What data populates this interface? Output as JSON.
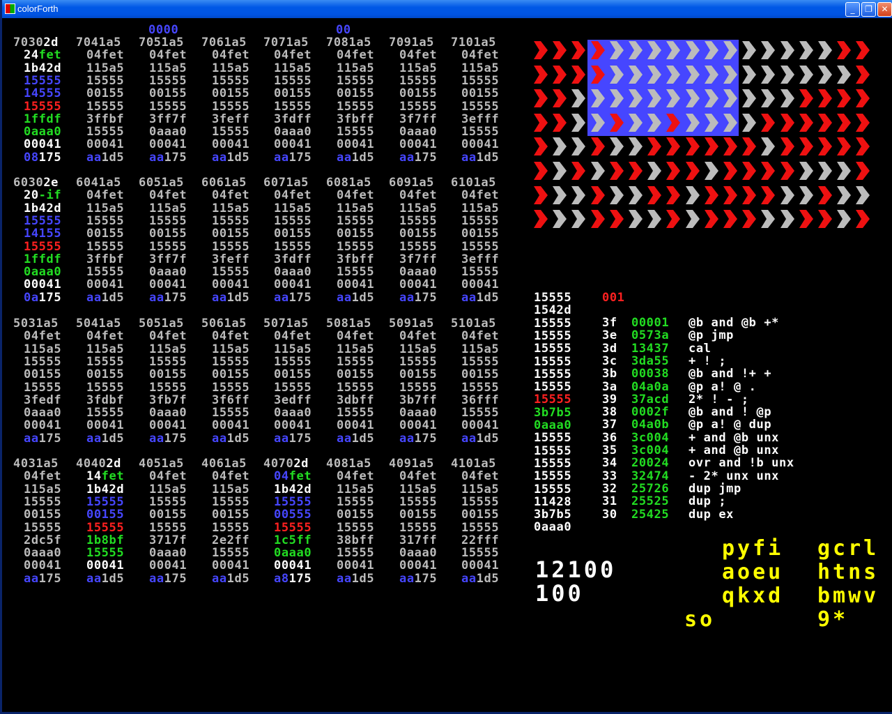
{
  "window": {
    "title": "colorForth"
  },
  "colors": {
    "white": "#ffffff",
    "gray": "#bcbcbc",
    "blue": "#4646ff",
    "red": "#ff2020",
    "green": "#22dd22",
    "yellow": "#ffff00",
    "flag_red": "#ee1111",
    "flag_gray": "#bcbcbc",
    "flag_blue": "#4646ff"
  },
  "top_markers": [
    "0000",
    "00"
  ],
  "blocks": [
    {
      "headers": [
        [
          "7030",
          [
            "2d",
            "w"
          ]
        ],
        "7041a5",
        "7051a5",
        "7061a5",
        "7071a5",
        "7081a5",
        "7091a5",
        "7101a5"
      ],
      "first_col": [
        [
          [
            "24",
            "w"
          ],
          [
            "fet",
            "gr"
          ]
        ],
        [
          "1b42d",
          "w"
        ],
        [
          "15555",
          "b"
        ],
        [
          "14555",
          "b"
        ],
        [
          "15555",
          "r"
        ],
        [
          "1ffdf",
          "gr"
        ],
        [
          "0aaa0",
          "gr"
        ],
        [
          "00041",
          "w"
        ],
        [
          [
            "08",
            "b"
          ],
          [
            "175",
            "w"
          ]
        ]
      ],
      "rows": [
        [
          "04fet"
        ],
        [
          "115a5"
        ],
        [
          "15555"
        ],
        [
          "00155"
        ],
        [
          "15555"
        ],
        [
          "3ffbf",
          "3ff7f",
          "3feff",
          "3fdff",
          "3fbff",
          "3f7ff",
          "3efff"
        ],
        [
          "15555",
          "0aaa0",
          "15555",
          "0aaa0",
          "15555",
          "0aaa0",
          "15555"
        ],
        [
          "00041"
        ],
        [
          "aa1d5",
          "aa175",
          "aa1d5",
          "aa175",
          "aa1d5",
          "aa175",
          "aa1d5"
        ]
      ]
    },
    {
      "headers": [
        [
          "6030",
          [
            "2e",
            "w"
          ]
        ],
        "6041a5",
        "6051a5",
        "6061a5",
        "6071a5",
        "6081a5",
        "6091a5",
        "6101a5"
      ],
      "first_col": [
        [
          [
            "20",
            "w"
          ],
          [
            "-if",
            "gr"
          ]
        ],
        [
          "1b42d",
          "w"
        ],
        [
          "15555",
          "b"
        ],
        [
          "14155",
          "b"
        ],
        [
          "15555",
          "r"
        ],
        [
          "1ffdf",
          "gr"
        ],
        [
          "0aaa0",
          "gr"
        ],
        [
          "00041",
          "w"
        ],
        [
          [
            "0a",
            "b"
          ],
          [
            "175",
            "w"
          ]
        ]
      ],
      "rows": [
        [
          "04fet"
        ],
        [
          "115a5"
        ],
        [
          "15555"
        ],
        [
          "00155"
        ],
        [
          "15555"
        ],
        [
          "3ffbf",
          "3ff7f",
          "3feff",
          "3fdff",
          "3fbff",
          "3f7ff",
          "3efff"
        ],
        [
          "15555",
          "0aaa0",
          "15555",
          "0aaa0",
          "15555",
          "0aaa0",
          "15555"
        ],
        [
          "00041"
        ],
        [
          "aa1d5",
          "aa175",
          "aa1d5",
          "aa175",
          "aa1d5",
          "aa175",
          "aa1d5"
        ]
      ]
    },
    {
      "headers": [
        "5031a5",
        "5041a5",
        "5051a5",
        "5061a5",
        "5071a5",
        "5081a5",
        "5091a5",
        "5101a5"
      ],
      "all_gray": true,
      "rows8": [
        [
          "04fet"
        ],
        [
          "115a5"
        ],
        [
          "15555"
        ],
        [
          "00155"
        ],
        [
          "15555"
        ],
        [
          "3fedf",
          "3fdbf",
          "3fb7f",
          "3f6ff",
          "3edff",
          "3dbff",
          "3b7ff",
          "36fff"
        ],
        [
          "0aaa0",
          "15555",
          "0aaa0",
          "15555",
          "0aaa0",
          "15555",
          "0aaa0",
          "15555"
        ],
        [
          "00041"
        ],
        [
          "aa175",
          "aa1d5",
          "aa175",
          "aa1d5",
          "aa175",
          "aa1d5",
          "aa175",
          "aa1d5"
        ]
      ]
    },
    {
      "headers": [
        "4031a5",
        [
          "4040",
          [
            "2d",
            "w"
          ]
        ],
        "4051a5",
        "4061a5",
        [
          "4070",
          [
            "2d",
            "w"
          ]
        ],
        "4081a5",
        "4091a5",
        "4101a5"
      ],
      "all_gray": true,
      "rows8": [
        [
          "04fet"
        ],
        [
          "115a5"
        ],
        [
          "15555"
        ],
        [
          "00155"
        ],
        [
          "15555"
        ],
        [
          "2dc5f",
          "1b8bf",
          "3717f",
          "2e2ff",
          "1c5ff",
          "38bff",
          "317ff",
          "22fff"
        ],
        [
          "0aaa0",
          "15555",
          "0aaa0",
          "15555",
          "0aaa0",
          "15555",
          "0aaa0",
          "15555"
        ],
        [
          "00041"
        ],
        [
          "aa175",
          "aa1d5",
          "aa175",
          "aa1d5",
          "aa175",
          "aa1d5",
          "aa175",
          "aa1d5"
        ]
      ],
      "special_cols": {
        "1": [
          [
            [
              "14",
              "w"
            ],
            [
              "fet",
              "gr"
            ]
          ],
          [
            "1b42d",
            "w"
          ],
          [
            "15555",
            "b"
          ],
          [
            "00155",
            "b"
          ],
          [
            "15555",
            "r"
          ],
          [
            "1b8bf",
            "gr"
          ],
          [
            "15555",
            "gr"
          ],
          [
            "00041",
            "w"
          ],
          null
        ],
        "4": [
          [
            [
              "04",
              "b"
            ],
            [
              "fet",
              "gr"
            ]
          ],
          [
            "1b42d",
            "w"
          ],
          [
            "15555",
            "b"
          ],
          [
            "00555",
            "b"
          ],
          [
            "15555",
            "r"
          ],
          [
            "1c5ff",
            "gr"
          ],
          [
            "0aaa0",
            "gr"
          ],
          [
            "00041",
            "w"
          ],
          [
            [
              "a8",
              "b"
            ],
            [
              "175",
              "w"
            ]
          ]
        ]
      }
    }
  ],
  "stack": [
    [
      "15555",
      "w"
    ],
    [
      "1542d",
      "w"
    ],
    [
      "15555",
      "w"
    ],
    [
      "15555",
      "w"
    ],
    [
      "15555",
      "w"
    ],
    [
      "15555",
      "w"
    ],
    [
      "15555",
      "w"
    ],
    [
      "15555",
      "w"
    ],
    [
      "15555",
      "r"
    ],
    [
      "3b7b5",
      "gr"
    ],
    [
      "0aaa0",
      "gr"
    ],
    [
      "15555",
      "w"
    ],
    [
      "15555",
      "w"
    ],
    [
      "15555",
      "w"
    ],
    [
      "15555",
      "w"
    ],
    [
      "15555",
      "w"
    ],
    [
      "11428",
      "w"
    ],
    [
      "3b7b5",
      "w"
    ],
    [
      "0aaa0",
      "w"
    ]
  ],
  "decompile_header": "001",
  "decompile": [
    {
      "addr": "3f",
      "val": "00001",
      "text": "@b and @b +*"
    },
    {
      "addr": "3e",
      "val": "0573a",
      "text": "@p jmp"
    },
    {
      "addr": "3d",
      "val": "13437",
      "text": "cal"
    },
    {
      "addr": "3c",
      "val": "3da55",
      "text": "+ ! ;"
    },
    {
      "addr": "3b",
      "val": "00038",
      "text": "@b and !+ +"
    },
    {
      "addr": "3a",
      "val": "04a0a",
      "text": "@p a! @ ."
    },
    {
      "addr": "39",
      "val": "37acd",
      "text": "2* ! - ;"
    },
    {
      "addr": "38",
      "val": "0002f",
      "text": "@b and ! @p"
    },
    {
      "addr": "37",
      "val": "04a0b",
      "text": "@p a! @ dup"
    },
    {
      "addr": "36",
      "val": "3c004",
      "text": "+ and @b unx"
    },
    {
      "addr": "35",
      "val": "3c004",
      "text": "+ and @b unx"
    },
    {
      "addr": "34",
      "val": "20024",
      "text": "ovr and !b unx"
    },
    {
      "addr": "33",
      "val": "32474",
      "text": "- 2* unx unx"
    },
    {
      "addr": "32",
      "val": "25726",
      "text": "dup jmp"
    },
    {
      "addr": "31",
      "val": "25525",
      "text": "dup ;"
    },
    {
      "addr": "30",
      "val": "25425",
      "text": "dup ex"
    }
  ],
  "numbers": [
    "12100",
    "100"
  ],
  "keyboard": {
    "left": [
      "pyfi",
      "aoeu",
      "qkxd",
      "so"
    ],
    "right": [
      "gcrl",
      "htns",
      "bmwv",
      "9*"
    ]
  },
  "flag": {
    "rows": 8,
    "cols": 18,
    "blue_box": {
      "from_col": 3,
      "to_col": 10,
      "rows": 4
    },
    "pattern": [
      "rrrrggggggggggggrrrr",
      "rrrrgggggggggggggrrr",
      "rrggggggggggggrrrrrr",
      "rrggrggrggggrrrrrrr",
      "rggrggrrrrrrgrrrrrgg",
      "rgrgrrgrrgrrrrgggrrr",
      "rggrggrrgrrrrggrgggg",
      "rggrrggrgrrrggrrgrrr"
    ]
  }
}
